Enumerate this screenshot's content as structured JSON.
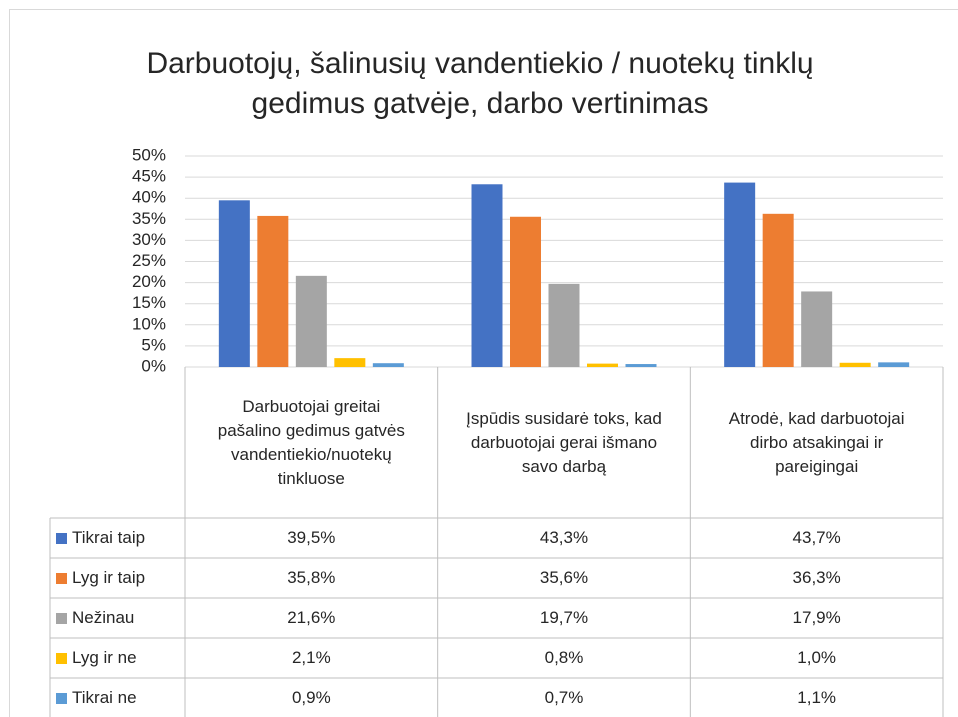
{
  "chart_data": {
    "type": "bar",
    "title": "Darbuotojų, šalinusių vandentiekio / nuotekų tinklų gedimus gatvėje, darbo vertinimas",
    "categories": [
      "Darbuotojai greitai pašalino gedimus gatvės vandentiekio/nuotekų tinkluose",
      "Įspūdis susidarė toks, kad darbuotojai gerai išmano savo darbą",
      "Atrodė, kad darbuotojai dirbo atsakingai ir pareigingai"
    ],
    "series": [
      {
        "name": "Tikrai taip",
        "color": "#4472c4",
        "values": [
          39.5,
          43.3,
          43.7
        ],
        "value_labels": [
          "39,5%",
          "43,3%",
          "43,7%"
        ]
      },
      {
        "name": "Lyg ir taip",
        "color": "#ed7d31",
        "values": [
          35.8,
          35.6,
          36.3
        ],
        "value_labels": [
          "35,8%",
          "35,6%",
          "36,3%"
        ]
      },
      {
        "name": "Nežinau",
        "color": "#a5a5a5",
        "values": [
          21.6,
          19.7,
          17.9
        ],
        "value_labels": [
          "21,6%",
          "19,7%",
          "17,9%"
        ]
      },
      {
        "name": "Lyg ir ne",
        "color": "#ffc000",
        "values": [
          2.1,
          0.8,
          1.0
        ],
        "value_labels": [
          "2,1%",
          "0,8%",
          "1,0%"
        ]
      },
      {
        "name": "Tikrai ne",
        "color": "#5b9bd5",
        "values": [
          0.9,
          0.7,
          1.1
        ],
        "value_labels": [
          "0,9%",
          "0,7%",
          "1,1%"
        ]
      }
    ],
    "ylim": [
      0,
      50
    ],
    "yticks": [
      {
        "value": 0,
        "label": "0%"
      },
      {
        "value": 5,
        "label": "5%"
      },
      {
        "value": 10,
        "label": "10%"
      },
      {
        "value": 15,
        "label": "15%"
      },
      {
        "value": 20,
        "label": "20%"
      },
      {
        "value": 25,
        "label": "25%"
      },
      {
        "value": 30,
        "label": "30%"
      },
      {
        "value": 35,
        "label": "35%"
      },
      {
        "value": 40,
        "label": "40%"
      },
      {
        "value": 45,
        "label": "45%"
      },
      {
        "value": 50,
        "label": "50%"
      }
    ],
    "grid": true,
    "data_table": true
  }
}
